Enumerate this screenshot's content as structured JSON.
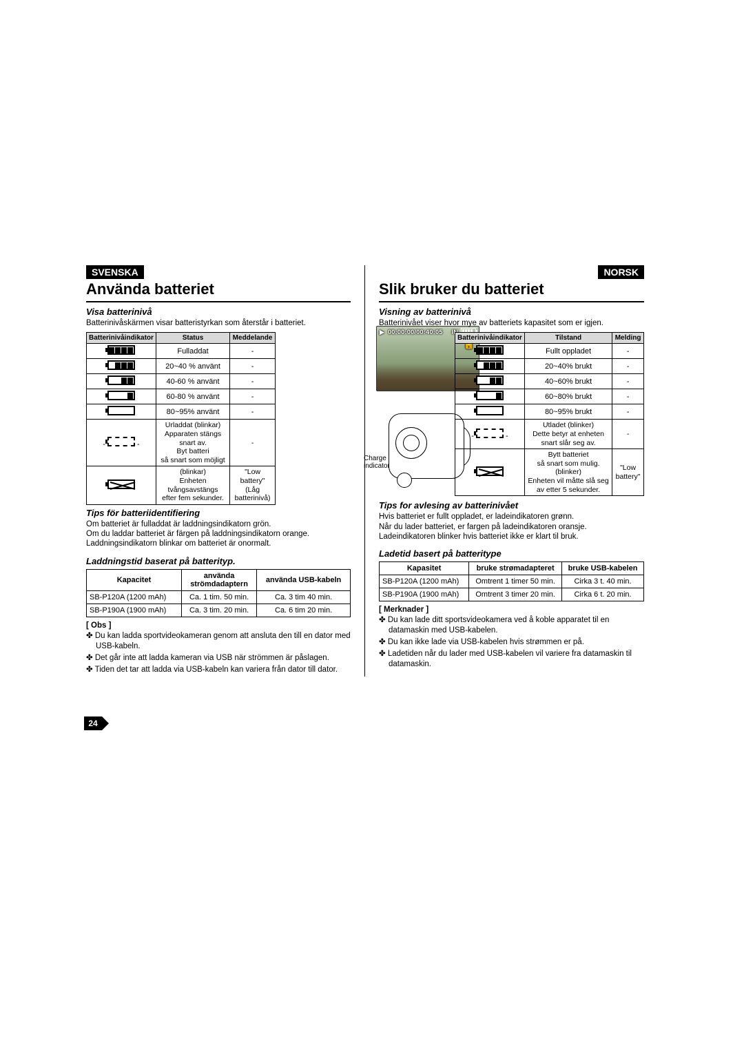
{
  "page_number": "24",
  "overlay": {
    "time": "00:00:00/00:40:05",
    "in": "IN"
  },
  "diagram": {
    "charge_label": "Charge",
    "indicator_label": "indicator"
  },
  "left": {
    "lang": "SVENSKA",
    "title": "Använda batteriet",
    "sec1_h": "Visa batterinivå",
    "sec1_p": "Batterinivåskärmen visar batteristyrkan som återstår i batteriet.",
    "tbl_h1": "Batterinivåindikator",
    "tbl_h2": "Status",
    "tbl_h3": "Meddelande",
    "rows": [
      {
        "status": "Fulladdat",
        "msg": "-"
      },
      {
        "status": "20~40 % använt",
        "msg": "-"
      },
      {
        "status": "40-60 % använt",
        "msg": "-"
      },
      {
        "status": "60-80 % använt",
        "msg": "-"
      },
      {
        "status": "80~95% använt",
        "msg": "-"
      },
      {
        "status": "Urladdat (blinkar)\nApparaten stängs snart av.\nByt batteri\nså snart som möjligt",
        "msg": "-"
      },
      {
        "status": "(blinkar)\nEnheten tvångsavstängs\nefter fem sekunder.",
        "msg": "\"Low\nbattery\" (Låg\nbatterinivå)"
      }
    ],
    "sec2_h": "Tips för batteriidentifiering",
    "sec2_p": "Om batteriet är fulladdat är laddningsindikatorn grön.\nOm du laddar batteriet är färgen på laddningsindikatorn orange.\nLaddningsindikatorn blinkar om batteriet är onormalt.",
    "sec3_h": "Laddningstid baserat på batterityp.",
    "ct_h1": "Kapacitet",
    "ct_h2": "använda\nströmdadaptern",
    "ct_h3": "använda USB-kabeln",
    "ct_rows": [
      {
        "cap": "SB-P120A (1200 mAh)",
        "ac": "Ca. 1 tim. 50 min.",
        "usb": "Ca. 3 tim 40 min."
      },
      {
        "cap": "SB-P190A (1900 mAh)",
        "ac": "Ca. 3 tim. 20 min.",
        "usb": "Ca. 6 tim 20 min."
      }
    ],
    "notes_h": "[ Obs ]",
    "notes": [
      "Du kan ladda sportvideokameran genom att ansluta den till en dator med USB-kabeln.",
      "Det går inte att ladda kameran via USB när strömmen är påslagen.",
      "Tiden det tar att ladda via USB-kabeln kan variera från dator till dator."
    ]
  },
  "right": {
    "lang": "NORSK",
    "title": "Slik bruker du batteriet",
    "sec1_h": "Visning av batterinivå",
    "sec1_p": "Batterinivået viser hvor mye av batteriets kapasitet som er igjen.",
    "tbl_h1": "Batterinivåindikator",
    "tbl_h2": "Tilstand",
    "tbl_h3": "Melding",
    "rows": [
      {
        "status": "Fullt oppladet",
        "msg": "-"
      },
      {
        "status": "20~40% brukt",
        "msg": "-"
      },
      {
        "status": "40~60% brukt",
        "msg": "-"
      },
      {
        "status": "60~80% brukt",
        "msg": "-"
      },
      {
        "status": "80~95% brukt",
        "msg": "-"
      },
      {
        "status": "Utladet (blinker)\nDette betyr at enheten\nsnart slår seg av.",
        "msg": "-"
      },
      {
        "status": "Bytt batteriet\nså snart som mulig.\n(blinker)\nEnheten vil måtte slå seg\nav etter 5 sekunder.",
        "msg": "\"Low\nbattery\""
      }
    ],
    "sec2_h": "Tips for avlesing av batterinivået",
    "sec2_p": "Hvis batteriet er fullt oppladet, er ladeindikatoren grønn.\nNår du lader batteriet, er fargen på ladeindikatoren oransje.\nLadeindikatoren blinker hvis batteriet ikke er klart til bruk.",
    "sec3_h": "Ladetid basert på batteritype",
    "ct_h1": "Kapasitet",
    "ct_h2": "bruke strømadapteret",
    "ct_h3": "bruke USB-kabelen",
    "ct_rows": [
      {
        "cap": "SB-P120A (1200 mAh)",
        "ac": "Omtrent 1 timer 50 min.",
        "usb": "Cirka 3 t. 40 min."
      },
      {
        "cap": "SB-P190A (1900 mAh)",
        "ac": "Omtrent 3 timer 20 min.",
        "usb": "Cirka 6 t. 20 min."
      }
    ],
    "notes_h": "[ Merknader ]",
    "notes": [
      "Du kan lade ditt sportsvideokamera ved å koble apparatet til en datamaskin med USB-kabelen.",
      "Du kan ikke lade via USB-kabelen hvis strømmen er på.",
      "Ladetiden når du lader med USB-kabelen vil variere fra datamaskin til datamaskin."
    ]
  },
  "battery_levels": [
    4,
    3,
    2,
    1,
    0
  ],
  "colors": {
    "badge_bg": "#000000",
    "badge_fg": "#ffffff",
    "table_header_bg": "#d9d9d9"
  }
}
